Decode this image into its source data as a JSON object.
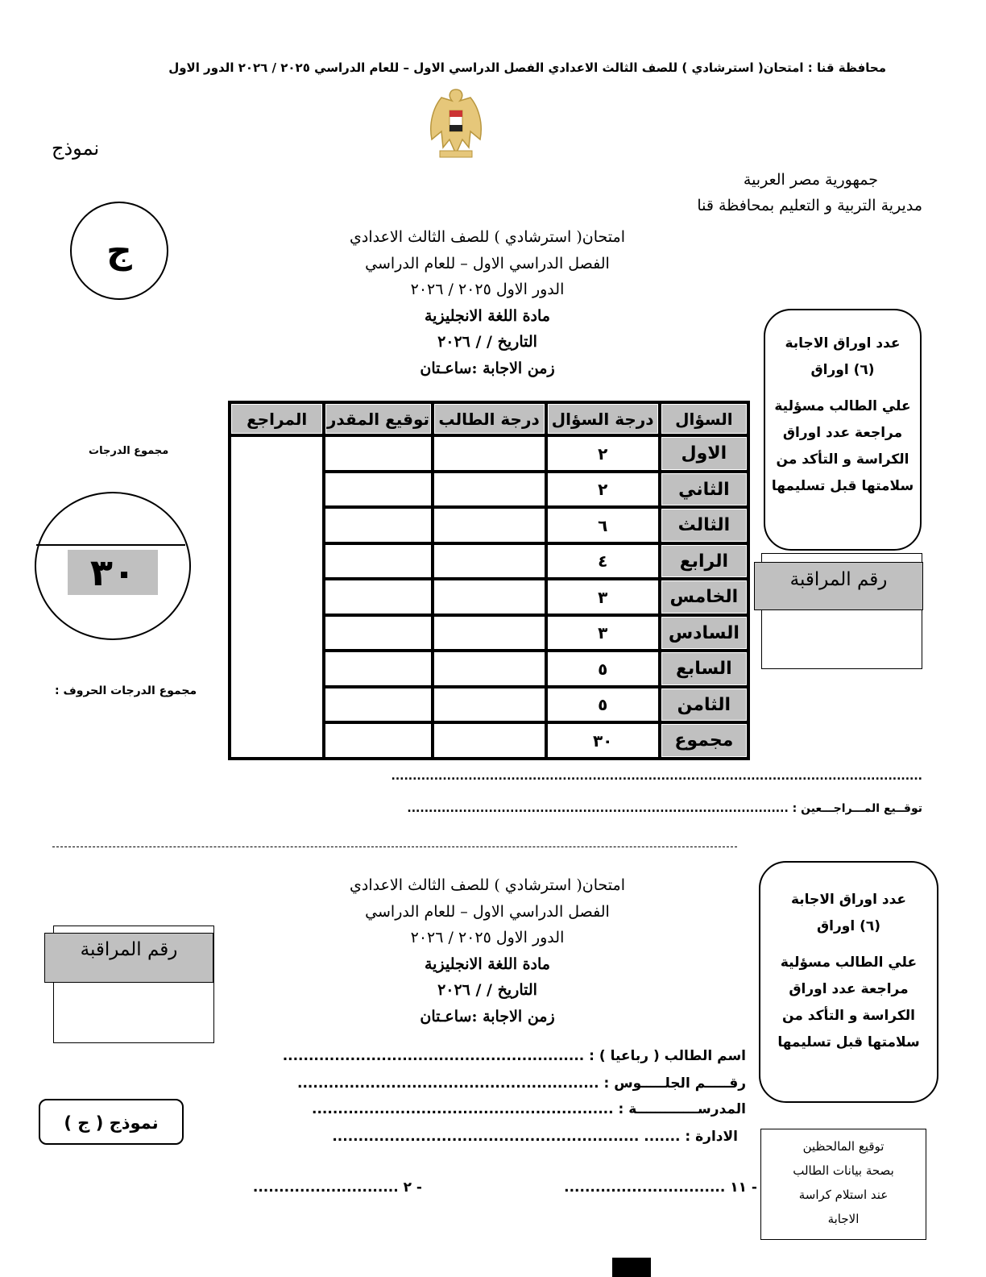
{
  "header_line": "محافظة قنا : امتحان( استرشادي ) للصف الثالث الاعدادي الفصل الدراسي الاول – للعام الدراسي  ٢٠٢٥  / ٢٠٢٦ الدور الاول",
  "model_word": "نموذج",
  "model_letter": "ج",
  "authority": {
    "line1": "جمهورية مصر العربية",
    "line2": "مديرية التربية و التعليم بمحافظة قنا"
  },
  "exam_title": {
    "l1": "امتحان( استرشادي ) للصف الثالث الاعدادي",
    "l2": "الفصل الدراسي الاول – للعام الدراسي",
    "l3": "الدور الاول  ٢٠٢٥ / ٢٠٢٦",
    "l4": "مادة اللغة الانجليزية",
    "l5": "التاريخ    /    /  ٢٠٢٦",
    "l6": "زمن الاجابة  :ساعـتان"
  },
  "sheets_box": {
    "l1": "عدد اوراق الاجابة",
    "l2": "(٦) اوراق",
    "l3": "علي الطالب مسؤلية",
    "l4": "مراجعة عدد اوراق",
    "l5": "الكراسة و التأكد من",
    "l6": "سلامتها قبل تسليمها"
  },
  "monitor_number_label": "رقم المراقبة",
  "total_grades_label": "مجموع الدرجات",
  "total_grade_value": "٣٠",
  "total_grades_letters_label": "مجموع الدرجات الحروف :",
  "grades_table": {
    "headers": [
      "السؤال",
      "درجة السؤال",
      "درجة الطالب",
      "توقيع المقدر",
      "المراجع"
    ],
    "rows": [
      {
        "q": "الاول",
        "mark": "٢"
      },
      {
        "q": "الثاني",
        "mark": "٢"
      },
      {
        "q": "الثالث",
        "mark": "٦"
      },
      {
        "q": "الرابع",
        "mark": "٤"
      },
      {
        "q": "الخامس",
        "mark": "٣"
      },
      {
        "q": "السادس",
        "mark": "٣"
      },
      {
        "q": "السابع",
        "mark": "٥"
      },
      {
        "q": "الثامن",
        "mark": "٥"
      },
      {
        "q": "مجموع",
        "mark": "٣٠"
      }
    ]
  },
  "dots_line": "............................................................................................................................",
  "reviewers_signature": "توقــيع المـــراجـــعين : .........................................................................................",
  "student_fields": {
    "name": "اسم الطالب ( رباعيا ) : ..........................................................",
    "seat": "رقـــــم الجلـــــوس : ..........................................................",
    "school": "المدرســـــــــــــة : ..........................................................",
    "admin": "الادارة :  ....... ..........................................................."
  },
  "model_box": "نموذج ( ج )",
  "invigilators_box": {
    "l1": "توقيع المالحظين",
    "l2": "بصحة بيانات الطالب",
    "l3": "عند استلام كراسة",
    "l4": "الاجابة"
  },
  "sig1": "- ١١ ...............................",
  "sig2": "- ٢ ............................"
}
